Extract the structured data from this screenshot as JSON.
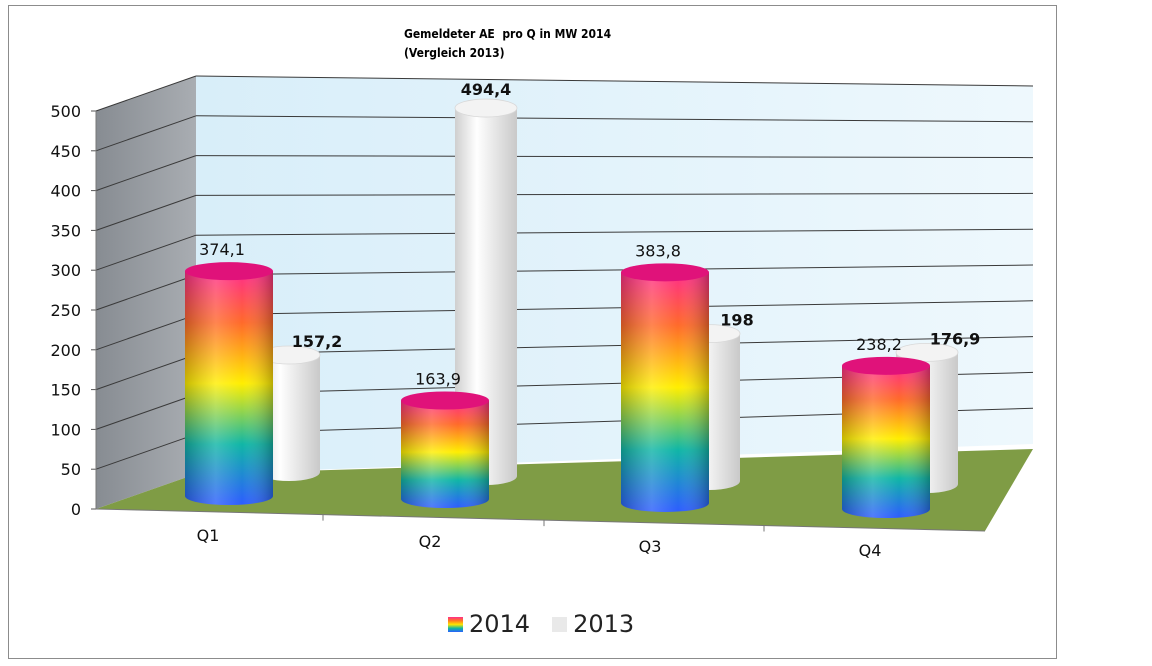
{
  "chart_data": {
    "type": "bar",
    "subtype": "3d-cylinder",
    "title": "Gemeldeter AE  pro Q in MW 2014",
    "subtitle": "(Vergleich 2013)",
    "categories": [
      "Q1",
      "Q2",
      "Q3",
      "Q4"
    ],
    "series": [
      {
        "name": "2014",
        "values": [
          374.1,
          163.9,
          383.8,
          238.2
        ],
        "labels": [
          "374,1",
          "163,9",
          "383,8",
          "238,2"
        ],
        "style": "rainbow-gradient"
      },
      {
        "name": "2013",
        "values": [
          157.2,
          494.4,
          198,
          176.9
        ],
        "labels": [
          "157,2",
          "494,4",
          "198",
          "176,9"
        ],
        "style": "light-gray"
      }
    ],
    "yticks": [
      "0",
      "50",
      "100",
      "150",
      "200",
      "250",
      "300",
      "350",
      "400",
      "450",
      "500"
    ],
    "ylim": [
      0,
      500
    ],
    "grid": true,
    "legend": "bottom",
    "colors": {
      "floor": "#7f9c45",
      "backwall": "#e2f2fb",
      "sidewall": "#9aa0a6",
      "bar2013": "#e6e6e6"
    }
  }
}
